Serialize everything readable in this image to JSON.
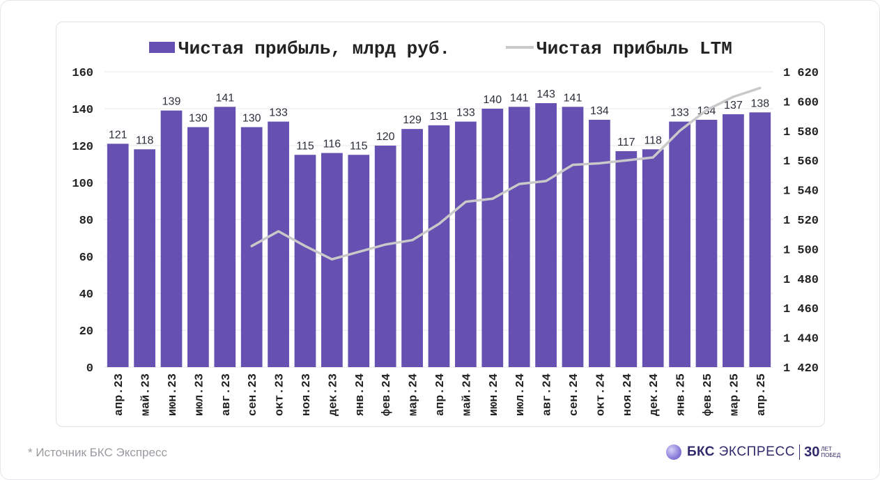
{
  "footer": {
    "note": "*  Источник БКС Экспресс",
    "brand_main": "БКС",
    "brand_sub": "ЭКСПРЕСС",
    "brand_years": "30",
    "brand_years_line1": "ЛЕТ",
    "brand_years_line2": "ПОБЕД"
  },
  "colors": {
    "bar": "#6651b2",
    "line": "#c9c9c9",
    "axis_text": "#222222",
    "label_text": "#2a2f3a",
    "grid": "#e8e8e8"
  },
  "chart_data": {
    "type": "bar",
    "title": "",
    "categories": [
      "апр.23",
      "май.23",
      "июн.23",
      "июл.23",
      "авг.23",
      "сен.23",
      "окт.23",
      "ноя.23",
      "дек.23",
      "янв.24",
      "фев.24",
      "мар.24",
      "апр.24",
      "май.24",
      "июн.24",
      "июл.24",
      "авг.24",
      "сен.24",
      "окт.24",
      "ноя.24",
      "дек.24",
      "янв.25",
      "фев.25",
      "мар.25",
      "апр.25"
    ],
    "series": [
      {
        "name": "Чистая прибыль, млрд руб.",
        "type": "bar",
        "axis": "left",
        "values": [
          121,
          118,
          139,
          130,
          141,
          130,
          133,
          115,
          116,
          115,
          120,
          129,
          131,
          133,
          140,
          141,
          143,
          141,
          134,
          117,
          118,
          133,
          134,
          137,
          138
        ],
        "labels": [
          "121",
          "118",
          "139",
          "130",
          "141",
          "130",
          "133",
          "115",
          "116",
          "115",
          "120",
          "129",
          "131",
          "133",
          "140",
          "141",
          "143",
          "141",
          "134",
          "117",
          "118",
          "133",
          "134",
          "137",
          "138"
        ]
      },
      {
        "name": "Чистая прибыль LTM",
        "type": "line",
        "axis": "right",
        "values": [
          null,
          null,
          null,
          null,
          null,
          1502,
          1512,
          1502,
          1493,
          1498,
          1503,
          1506,
          1517,
          1532,
          1534,
          1544,
          1546,
          1557,
          1558,
          1560,
          1562,
          1580,
          1594,
          1603,
          1609
        ]
      }
    ],
    "y_left": {
      "min": 0,
      "max": 160,
      "ticks": [
        "0",
        "20",
        "40",
        "60",
        "80",
        "100",
        "120",
        "140",
        "160"
      ]
    },
    "y_right": {
      "min": 1420,
      "max": 1620,
      "ticks": [
        "1 420",
        "1 440",
        "1 460",
        "1 480",
        "1 500",
        "1 520",
        "1 540",
        "1 560",
        "1 580",
        "1 600",
        "1 620"
      ]
    },
    "grid": true,
    "legend": "top-center"
  }
}
